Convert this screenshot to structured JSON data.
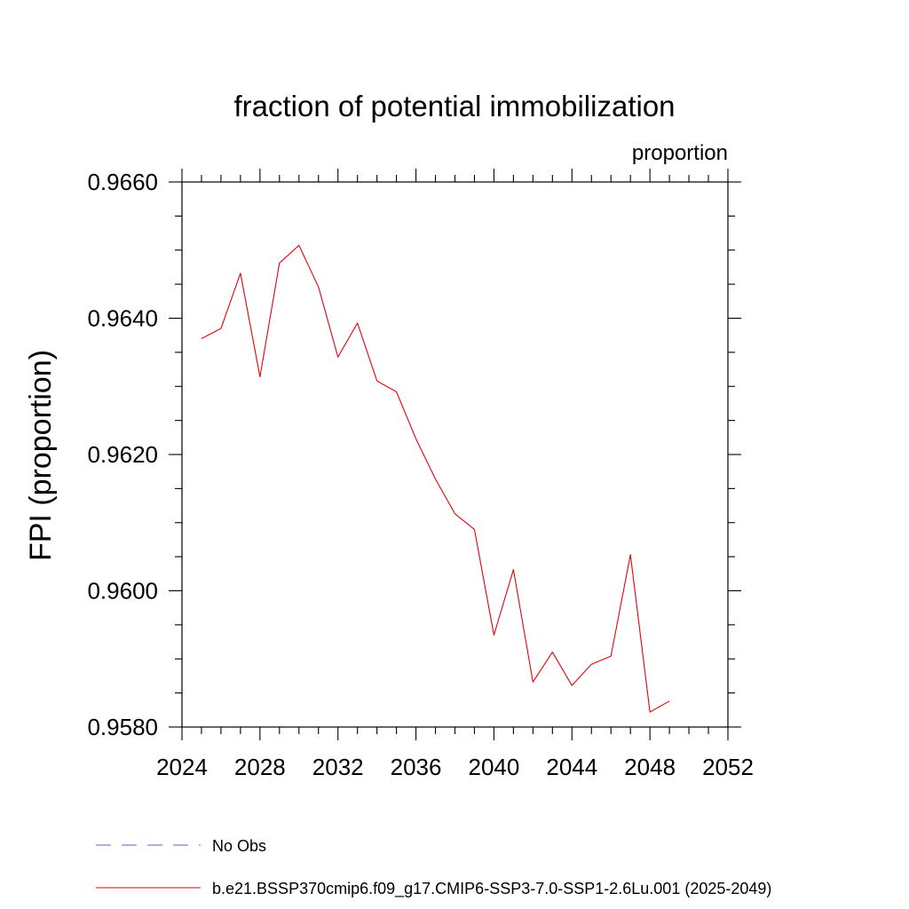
{
  "chart_data": {
    "type": "line",
    "title": "fraction of potential immobilization",
    "units_label": "proportion",
    "ylabel": "FPI  (proportion)",
    "xlabel": "",
    "xlim": [
      2024,
      2052
    ],
    "ylim": [
      0.958,
      0.966
    ],
    "x_ticks": [
      2024,
      2028,
      2032,
      2036,
      2040,
      2044,
      2048,
      2052
    ],
    "x_tick_labels": [
      "2024",
      "2028",
      "2032",
      "2036",
      "2040",
      "2044",
      "2048",
      "2052"
    ],
    "y_ticks": [
      0.958,
      0.96,
      0.962,
      0.964,
      0.966
    ],
    "y_tick_labels": [
      "0.9580",
      "0.9600",
      "0.9620",
      "0.9640",
      "0.9660"
    ],
    "x_minor_step": 1,
    "y_minor_step": 0.0005,
    "grid": false,
    "legend_position": "bottom",
    "series": [
      {
        "name": "b.e21.BSSP370cmip6.f09_g17.CMIP6-SSP3-7.0-SSP1-2.6Lu.001 (2025-2049)",
        "color": "#e8000b",
        "style": "solid",
        "x": [
          2025,
          2026,
          2027,
          2028,
          2029,
          2030,
          2031,
          2032,
          2033,
          2034,
          2035,
          2036,
          2037,
          2038,
          2039,
          2040,
          2041,
          2042,
          2043,
          2044,
          2045,
          2046,
          2047,
          2048,
          2049
        ],
        "y": [
          0.9637,
          0.96385,
          0.96466,
          0.96314,
          0.96481,
          0.96507,
          0.96446,
          0.96343,
          0.96393,
          0.96308,
          0.96292,
          0.96223,
          0.96164,
          0.96113,
          0.9609,
          0.95935,
          0.96031,
          0.95866,
          0.9591,
          0.95861,
          0.95892,
          0.95904,
          0.96053,
          0.95822,
          0.95838
        ]
      }
    ],
    "legend": [
      {
        "label": "No Obs",
        "color": "#6a5acd",
        "style": "dashed"
      },
      {
        "label": "b.e21.BSSP370cmip6.f09_g17.CMIP6-SSP3-7.0-SSP1-2.6Lu.001 (2025-2049)",
        "color": "#e8000b",
        "style": "solid"
      }
    ]
  }
}
